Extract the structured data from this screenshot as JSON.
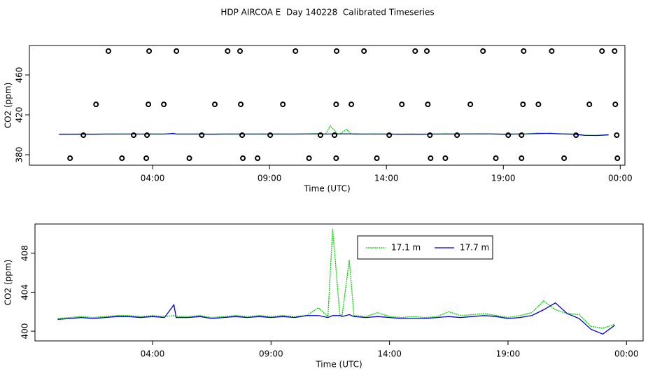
{
  "chart_data": [
    {
      "type": "line",
      "title": "HDP AIRCOA E  Day 140228  Calibrated Timeseries",
      "ylabel": "CO2 (ppm)",
      "xlabel": "Time (UTC)",
      "xlim": [
        -1.27,
        24.2
      ],
      "ylim": [
        369.5,
        489.5
      ],
      "xticks": [
        {
          "value": 4,
          "label": "04:00"
        },
        {
          "value": 9,
          "label": "09:00"
        },
        {
          "value": 14,
          "label": "14:00"
        },
        {
          "value": 19,
          "label": "19:00"
        },
        {
          "value": 24,
          "label": "00:00"
        }
      ],
      "yticks": [
        380,
        420,
        460
      ],
      "x": [
        0,
        0.5,
        1,
        1.5,
        2,
        2.5,
        3,
        3.5,
        4,
        4.5,
        4.9,
        5,
        5.5,
        6,
        6.5,
        7,
        7.5,
        8,
        8.5,
        9,
        9.5,
        10,
        10.5,
        11,
        11.4,
        11.6,
        11.9,
        12,
        12.3,
        12.5,
        13,
        13.5,
        14,
        14.5,
        15,
        15.5,
        16,
        16.5,
        17,
        17.5,
        18,
        18.5,
        19,
        19.5,
        20,
        20.5,
        21,
        21.5,
        22,
        22.5,
        23,
        23.5
      ],
      "series": [
        {
          "color": "#00cc00",
          "values": [
            400.6,
            400.6,
            400.7,
            400.6,
            400.7,
            400.8,
            400.8,
            400.7,
            400.8,
            400.7,
            400.8,
            400.7,
            400.7,
            400.8,
            400.6,
            400.7,
            400.8,
            400.7,
            400.8,
            400.7,
            400.8,
            400.7,
            400.8,
            401.2,
            400.7,
            409.0,
            401.2,
            400.8,
            405.5,
            400.8,
            400.7,
            400.9,
            400.7,
            400.6,
            400.7,
            400.6,
            400.7,
            401.0,
            400.8,
            400.9,
            401.0,
            400.8,
            400.6,
            400.8,
            401.0,
            401.8,
            401.2,
            400.9,
            400.8,
            399.6,
            399.4,
            400.0
          ]
        },
        {
          "color": "#0000cc",
          "values": [
            400.5,
            400.6,
            400.6,
            400.6,
            400.7,
            400.7,
            400.7,
            400.7,
            400.7,
            400.7,
            401.4,
            400.7,
            400.7,
            400.7,
            400.6,
            400.7,
            400.7,
            400.7,
            400.7,
            400.7,
            400.7,
            400.7,
            400.8,
            400.8,
            400.7,
            400.8,
            400.8,
            400.8,
            400.9,
            400.8,
            400.7,
            400.7,
            400.7,
            400.6,
            400.6,
            400.6,
            400.7,
            400.7,
            400.7,
            400.8,
            400.8,
            400.8,
            400.6,
            400.7,
            400.8,
            401.2,
            401.5,
            400.9,
            400.6,
            399.4,
            399.3,
            399.9
          ]
        }
      ],
      "points": {
        "color": "#000000",
        "x": [
          2.11,
          3.85,
          5.02,
          7.21,
          7.74,
          10.11,
          11.87,
          13.04,
          15.23,
          15.73,
          18.13,
          19.87,
          21.07,
          23.22,
          23.76,
          1.58,
          3.82,
          4.48,
          6.66,
          7.77,
          9.57,
          11.85,
          12.5,
          14.66,
          15.77,
          17.59,
          19.84,
          20.5,
          22.68,
          23.79,
          1.04,
          3.19,
          3.76,
          6.1,
          7.83,
          9.03,
          11.18,
          11.78,
          14.12,
          15.86,
          17.02,
          19.21,
          19.78,
          22.11,
          23.85,
          0.47,
          2.69,
          3.73,
          5.57,
          7.86,
          8.49,
          10.69,
          11.85,
          13.59,
          15.89,
          16.52,
          18.68,
          19.78,
          21.6,
          23.88
        ],
        "y": [
          483.9,
          483.9,
          483.9,
          483.9,
          483.9,
          483.9,
          483.9,
          483.9,
          483.9,
          483.9,
          483.9,
          483.9,
          483.9,
          483.9,
          483.9,
          430.5,
          430.5,
          430.5,
          430.5,
          430.5,
          430.5,
          430.5,
          430.5,
          430.5,
          430.5,
          430.5,
          430.5,
          430.5,
          430.5,
          430.5,
          399.6,
          399.6,
          399.6,
          399.6,
          399.6,
          399.6,
          399.6,
          399.6,
          399.6,
          399.6,
          399.6,
          399.6,
          399.6,
          399.6,
          399.6,
          376.5,
          376.5,
          376.5,
          376.5,
          376.5,
          376.5,
          376.5,
          376.5,
          376.5,
          376.5,
          376.5,
          376.5,
          376.5,
          376.5,
          376.5
        ]
      }
    },
    {
      "type": "line",
      "ylabel": "CO2 (ppm)",
      "xlabel": "Time (UTC)",
      "xlim": [
        -0.96,
        24.7
      ],
      "ylim": [
        399.0,
        411.0
      ],
      "xticks": [
        {
          "value": 4,
          "label": "04:00"
        },
        {
          "value": 9,
          "label": "09:00"
        },
        {
          "value": 14,
          "label": "14:00"
        },
        {
          "value": 19,
          "label": "19:00"
        },
        {
          "value": 24,
          "label": "00:00"
        }
      ],
      "yticks": [
        400,
        404,
        408
      ],
      "x": [
        0,
        0.5,
        1,
        1.5,
        2,
        2.5,
        3,
        3.5,
        4,
        4.5,
        4.9,
        5,
        5.5,
        6,
        6.5,
        7,
        7.5,
        8,
        8.5,
        9,
        9.5,
        10,
        10.5,
        11,
        11.4,
        11.6,
        11.9,
        12,
        12.3,
        12.5,
        13,
        13.5,
        14,
        14.5,
        15,
        15.5,
        16,
        16.5,
        17,
        17.5,
        18,
        18.5,
        19,
        19.5,
        20,
        20.5,
        21,
        21.5,
        22,
        22.5,
        23,
        23.5
      ],
      "series": [
        {
          "name": "17.1 m",
          "color": "#00cc00",
          "values": [
            401.3,
            401.4,
            401.5,
            401.4,
            401.5,
            401.6,
            401.6,
            401.5,
            401.6,
            401.5,
            401.6,
            401.5,
            401.5,
            401.6,
            401.4,
            401.5,
            401.6,
            401.5,
            401.6,
            401.5,
            401.6,
            401.5,
            401.6,
            402.4,
            401.5,
            410.5,
            401.7,
            401.6,
            407.3,
            401.6,
            401.5,
            401.9,
            401.5,
            401.4,
            401.5,
            401.4,
            401.5,
            402.0,
            401.6,
            401.7,
            401.8,
            401.6,
            401.4,
            401.6,
            401.9,
            403.1,
            402.2,
            401.8,
            401.7,
            400.5,
            400.3,
            400.7
          ]
        },
        {
          "name": "17.7 m",
          "color": "#0000cc",
          "values": [
            401.2,
            401.3,
            401.4,
            401.3,
            401.4,
            401.5,
            401.5,
            401.4,
            401.5,
            401.4,
            402.7,
            401.4,
            401.4,
            401.5,
            401.3,
            401.4,
            401.5,
            401.4,
            401.5,
            401.4,
            401.5,
            401.4,
            401.6,
            401.6,
            401.4,
            401.6,
            401.6,
            401.5,
            401.7,
            401.5,
            401.4,
            401.5,
            401.4,
            401.3,
            401.3,
            401.3,
            401.4,
            401.5,
            401.4,
            401.5,
            401.6,
            401.5,
            401.3,
            401.4,
            401.6,
            402.2,
            402.9,
            401.8,
            401.3,
            400.2,
            399.7,
            400.6
          ]
        }
      ]
    }
  ]
}
